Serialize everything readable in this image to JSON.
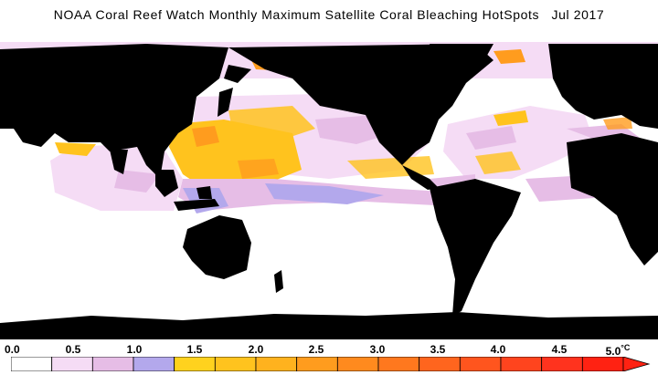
{
  "title": {
    "text": "NOAA Coral Reef Watch Monthly Maximum Satellite Coral Bleaching HotSpots   Jul 2017"
  },
  "legend": {
    "ticks": [
      "0.0",
      "0.5",
      "1.0",
      "1.5",
      "2.0",
      "2.5",
      "3.0",
      "3.5",
      "4.0",
      "4.5",
      "5.0"
    ],
    "unit": "°C",
    "colors": [
      "#ffffff",
      "#f5dcf5",
      "#e6bde6",
      "#b3a8ec",
      "#ffd21e",
      "#ffc31e",
      "#ffb21e",
      "#ff9c1e",
      "#ff8a1e",
      "#ff781e",
      "#ff651e",
      "#ff551e",
      "#ff441e",
      "#ff331e",
      "#ff2212"
    ],
    "colors_note_hidden": false
  },
  "map_colors": {
    "land": "#000000",
    "no_stress": "#ffffff",
    "watch_low": "#f5dcf5",
    "watch_mid": "#e6bde6",
    "watch_high": "#b3a8ec",
    "warning_yellow": "#ffc31e",
    "warning_orange": "#ff9c1e",
    "alert_red": "#ff331e"
  }
}
